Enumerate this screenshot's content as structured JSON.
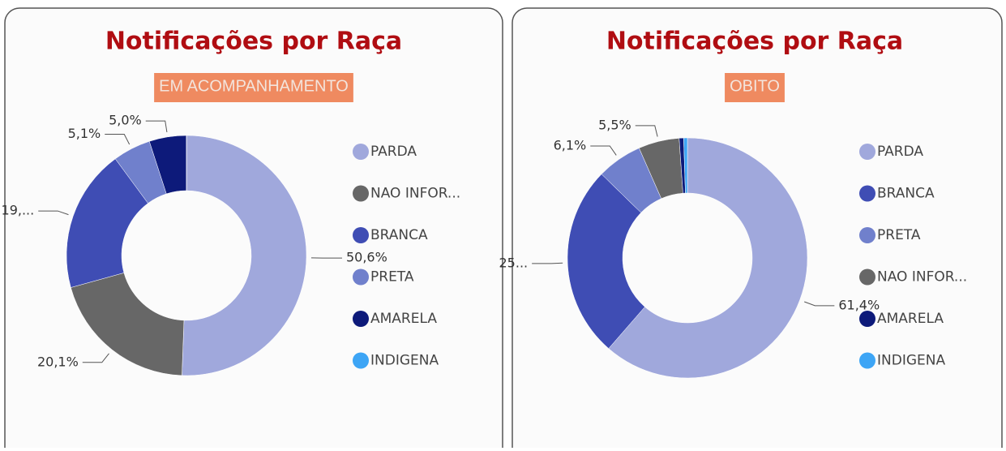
{
  "chart_data": [
    {
      "type": "pie",
      "title": "Notificações por Raça",
      "subtitle": "EM ACOMPANHAMENTO",
      "categories": [
        "PARDA",
        "NAO INFOR...",
        "BRANCA",
        "PRETA",
        "AMARELA",
        "INDIGENA"
      ],
      "values": [
        50.6,
        20.1,
        19.2,
        5.1,
        5.0,
        0
      ],
      "value_labels": [
        "50,6%",
        "20,1%",
        "19,...",
        "5,1%",
        "5,0%",
        null
      ],
      "colors": [
        "#a0a8dc",
        "#676767",
        "#3f4db4",
        "#7080cc",
        "#0d1a7a",
        "#3da5f5"
      ]
    },
    {
      "type": "pie",
      "title": "Notificações por Raça",
      "subtitle": "OBITO",
      "categories": [
        "PARDA",
        "BRANCA",
        "PRETA",
        "NAO INFOR...",
        "AMARELA",
        "INDIGENA"
      ],
      "values": [
        61.4,
        25.9,
        6.1,
        5.5,
        0.6,
        0.5
      ],
      "value_labels": [
        "61,4%",
        "25...",
        "6,1%",
        "5,5%",
        null,
        null
      ],
      "colors": [
        "#a0a8dc",
        "#3f4db4",
        "#7080cc",
        "#676767",
        "#0d1a7a",
        "#3da5f5"
      ]
    }
  ]
}
